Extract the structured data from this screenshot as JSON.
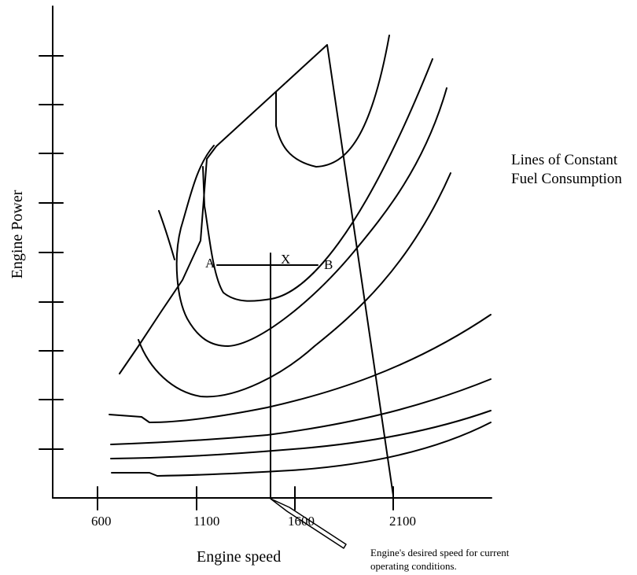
{
  "chart_data": {
    "type": "line",
    "title": "",
    "xlabel": "Engine speed",
    "ylabel": "Engine Power",
    "x_ticks": [
      600,
      1100,
      1600,
      2100
    ],
    "y_tick_count": 9,
    "grid": false,
    "series_label": [
      "Lines of Constant",
      "Fuel Consumption"
    ],
    "point_labels": {
      "a": "A",
      "x": "X",
      "b": "B"
    },
    "annotation": [
      "Engine's desired speed for current",
      "operating conditions."
    ]
  }
}
